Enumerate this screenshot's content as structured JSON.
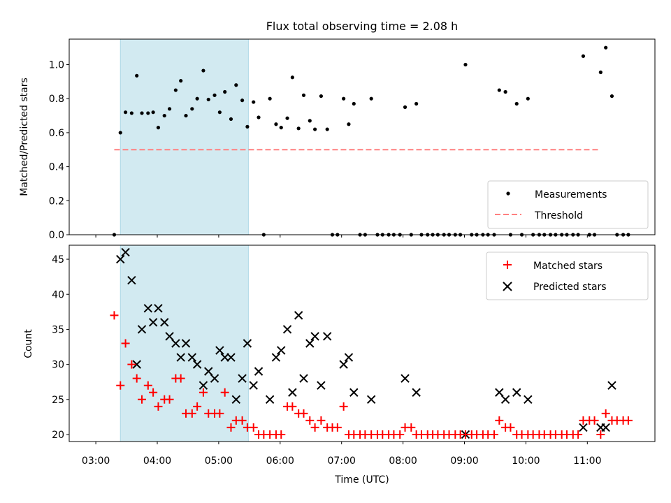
{
  "figure": {
    "title": "Flux total observing time = 2.08 h",
    "xlabel": "Time (UTC)"
  },
  "chart_data": [
    {
      "type": "scatter",
      "ylabel": "Matched/Predicted stars",
      "xlim": [
        "03:00",
        "11:40"
      ],
      "ylim": [
        0,
        1.15
      ],
      "yticks": [
        "0.0",
        "0.2",
        "0.4",
        "0.6",
        "0.8",
        "1.0"
      ],
      "x_tick_marks": [
        "03:00",
        "04:00",
        "05:00",
        "06:00",
        "07:00",
        "08:00",
        "09:00",
        "10:00",
        "11:00"
      ],
      "x_tick_labels_shown": false,
      "legend_position": "lower right",
      "shaded_interval": [
        "03:24",
        "05:29"
      ],
      "shaded_color": "#add8e6",
      "threshold": {
        "name": "Threshold",
        "value": 0.5,
        "x_range": [
          "03:18",
          "11:12"
        ],
        "color": "#ff8080",
        "style": "dashed"
      },
      "series": [
        {
          "name": "Measurements",
          "color": "#000000",
          "points": [
            [
              "03:18",
              0.0
            ],
            [
              "03:24",
              0.6
            ],
            [
              "03:29",
              0.72
            ],
            [
              "03:35",
              0.715
            ],
            [
              "03:40",
              0.935
            ],
            [
              "03:45",
              0.715
            ],
            [
              "03:51",
              0.715
            ],
            [
              "03:56",
              0.72
            ],
            [
              "04:01",
              0.63
            ],
            [
              "04:07",
              0.7
            ],
            [
              "04:12",
              0.74
            ],
            [
              "04:18",
              0.85
            ],
            [
              "04:23",
              0.905
            ],
            [
              "04:28",
              0.7
            ],
            [
              "04:34",
              0.74
            ],
            [
              "04:39",
              0.8
            ],
            [
              "04:45",
              0.965
            ],
            [
              "04:50",
              0.795
            ],
            [
              "04:56",
              0.82
            ],
            [
              "05:01",
              0.72
            ],
            [
              "05:06",
              0.84
            ],
            [
              "05:12",
              0.68
            ],
            [
              "05:17",
              0.88
            ],
            [
              "05:23",
              0.79
            ],
            [
              "05:28",
              0.635
            ],
            [
              "05:34",
              0.78
            ],
            [
              "05:39",
              0.69
            ],
            [
              "05:44",
              0.0
            ],
            [
              "05:50",
              0.8
            ],
            [
              "05:56",
              0.65
            ],
            [
              "06:01",
              0.63
            ],
            [
              "06:07",
              0.685
            ],
            [
              "06:12",
              0.925
            ],
            [
              "06:18",
              0.625
            ],
            [
              "06:23",
              0.82
            ],
            [
              "06:29",
              0.67
            ],
            [
              "06:34",
              0.62
            ],
            [
              "06:40",
              0.815
            ],
            [
              "06:46",
              0.62
            ],
            [
              "06:51",
              0.0
            ],
            [
              "06:56",
              0.0
            ],
            [
              "07:02",
              0.8
            ],
            [
              "07:07",
              0.65
            ],
            [
              "07:12",
              0.77
            ],
            [
              "07:18",
              0.0
            ],
            [
              "07:23",
              0.0
            ],
            [
              "07:29",
              0.8
            ],
            [
              "07:35",
              0.0
            ],
            [
              "07:40",
              0.0
            ],
            [
              "07:46",
              0.0
            ],
            [
              "07:51",
              0.0
            ],
            [
              "07:57",
              0.0
            ],
            [
              "08:02",
              0.75
            ],
            [
              "08:08",
              0.0
            ],
            [
              "08:13",
              0.77
            ],
            [
              "08:18",
              0.0
            ],
            [
              "08:24",
              0.0
            ],
            [
              "08:29",
              0.0
            ],
            [
              "08:34",
              0.0
            ],
            [
              "08:40",
              0.0
            ],
            [
              "08:45",
              0.0
            ],
            [
              "08:51",
              0.0
            ],
            [
              "08:56",
              0.0
            ],
            [
              "09:01",
              1.0
            ],
            [
              "09:07",
              0.0
            ],
            [
              "09:12",
              0.0
            ],
            [
              "09:18",
              0.0
            ],
            [
              "09:23",
              0.0
            ],
            [
              "09:29",
              0.0
            ],
            [
              "09:34",
              0.85
            ],
            [
              "09:40",
              0.84
            ],
            [
              "09:45",
              0.0
            ],
            [
              "09:51",
              0.77
            ],
            [
              "09:56",
              0.0
            ],
            [
              "10:02",
              0.8
            ],
            [
              "10:07",
              0.0
            ],
            [
              "10:13",
              0.0
            ],
            [
              "10:18",
              0.0
            ],
            [
              "10:24",
              0.0
            ],
            [
              "10:29",
              0.0
            ],
            [
              "10:35",
              0.0
            ],
            [
              "10:40",
              0.0
            ],
            [
              "10:46",
              0.0
            ],
            [
              "10:51",
              0.0
            ],
            [
              "10:56",
              1.05
            ],
            [
              "11:02",
              0.0
            ],
            [
              "11:07",
              0.0
            ],
            [
              "11:13",
              0.955
            ],
            [
              "11:18",
              1.1
            ],
            [
              "11:24",
              0.815
            ],
            [
              "11:29",
              0.0
            ],
            [
              "11:35",
              0.0
            ],
            [
              "11:40",
              0.0
            ]
          ]
        }
      ]
    },
    {
      "type": "scatter",
      "ylabel": "Count",
      "xlim": [
        "03:00",
        "11:40"
      ],
      "ylim": [
        19,
        47
      ],
      "yticks": [
        "20",
        "25",
        "30",
        "35",
        "40",
        "45"
      ],
      "x_tick_labels": [
        "03:00",
        "04:00",
        "05:00",
        "06:00",
        "07:00",
        "08:00",
        "09:00",
        "10:00",
        "11:00"
      ],
      "legend_position": "upper right",
      "shaded_interval": [
        "03:24",
        "05:29"
      ],
      "shaded_color": "#add8e6",
      "series": [
        {
          "name": "Matched stars",
          "color": "#ff0000",
          "marker": "plus",
          "points": [
            [
              "03:18",
              37
            ],
            [
              "03:24",
              27
            ],
            [
              "03:29",
              33
            ],
            [
              "03:35",
              30
            ],
            [
              "03:40",
              28
            ],
            [
              "03:45",
              25
            ],
            [
              "03:51",
              27
            ],
            [
              "03:56",
              26
            ],
            [
              "04:01",
              24
            ],
            [
              "04:07",
              25
            ],
            [
              "04:12",
              25
            ],
            [
              "04:18",
              28
            ],
            [
              "04:23",
              28
            ],
            [
              "04:28",
              23
            ],
            [
              "04:34",
              23
            ],
            [
              "04:39",
              24
            ],
            [
              "04:45",
              26
            ],
            [
              "04:50",
              23
            ],
            [
              "04:56",
              23
            ],
            [
              "05:01",
              23
            ],
            [
              "05:06",
              26
            ],
            [
              "05:12",
              21
            ],
            [
              "05:17",
              22
            ],
            [
              "05:23",
              22
            ],
            [
              "05:28",
              21
            ],
            [
              "05:34",
              21
            ],
            [
              "05:39",
              20
            ],
            [
              "05:44",
              20
            ],
            [
              "05:50",
              20
            ],
            [
              "05:56",
              20
            ],
            [
              "06:01",
              20
            ],
            [
              "06:07",
              24
            ],
            [
              "06:12",
              24
            ],
            [
              "06:18",
              23
            ],
            [
              "06:23",
              23
            ],
            [
              "06:29",
              22
            ],
            [
              "06:34",
              21
            ],
            [
              "06:40",
              22
            ],
            [
              "06:46",
              21
            ],
            [
              "06:51",
              21
            ],
            [
              "06:56",
              21
            ],
            [
              "07:02",
              24
            ],
            [
              "07:07",
              20
            ],
            [
              "07:12",
              20
            ],
            [
              "07:18",
              20
            ],
            [
              "07:23",
              20
            ],
            [
              "07:29",
              20
            ],
            [
              "07:35",
              20
            ],
            [
              "07:40",
              20
            ],
            [
              "07:46",
              20
            ],
            [
              "07:51",
              20
            ],
            [
              "07:57",
              20
            ],
            [
              "08:02",
              21
            ],
            [
              "08:08",
              21
            ],
            [
              "08:13",
              20
            ],
            [
              "08:18",
              20
            ],
            [
              "08:24",
              20
            ],
            [
              "08:29",
              20
            ],
            [
              "08:34",
              20
            ],
            [
              "08:40",
              20
            ],
            [
              "08:45",
              20
            ],
            [
              "08:51",
              20
            ],
            [
              "08:56",
              20
            ],
            [
              "09:01",
              20
            ],
            [
              "09:07",
              20
            ],
            [
              "09:12",
              20
            ],
            [
              "09:18",
              20
            ],
            [
              "09:23",
              20
            ],
            [
              "09:29",
              20
            ],
            [
              "09:34",
              22
            ],
            [
              "09:40",
              21
            ],
            [
              "09:45",
              21
            ],
            [
              "09:51",
              20
            ],
            [
              "09:56",
              20
            ],
            [
              "10:02",
              20
            ],
            [
              "10:07",
              20
            ],
            [
              "10:13",
              20
            ],
            [
              "10:18",
              20
            ],
            [
              "10:24",
              20
            ],
            [
              "10:29",
              20
            ],
            [
              "10:35",
              20
            ],
            [
              "10:40",
              20
            ],
            [
              "10:46",
              20
            ],
            [
              "10:51",
              20
            ],
            [
              "10:56",
              22
            ],
            [
              "11:02",
              22
            ],
            [
              "11:07",
              22
            ],
            [
              "11:13",
              20
            ],
            [
              "11:18",
              23
            ],
            [
              "11:24",
              22
            ],
            [
              "11:29",
              22
            ],
            [
              "11:35",
              22
            ],
            [
              "11:40",
              22
            ]
          ]
        },
        {
          "name": "Predicted stars",
          "color": "#000000",
          "marker": "x",
          "points": [
            [
              "03:24",
              45
            ],
            [
              "03:29",
              46
            ],
            [
              "03:35",
              42
            ],
            [
              "03:40",
              30
            ],
            [
              "03:45",
              35
            ],
            [
              "03:51",
              38
            ],
            [
              "03:56",
              36
            ],
            [
              "04:01",
              38
            ],
            [
              "04:07",
              36
            ],
            [
              "04:12",
              34
            ],
            [
              "04:18",
              33
            ],
            [
              "04:23",
              31
            ],
            [
              "04:28",
              33
            ],
            [
              "04:34",
              31
            ],
            [
              "04:39",
              30
            ],
            [
              "04:45",
              27
            ],
            [
              "04:50",
              29
            ],
            [
              "04:56",
              28
            ],
            [
              "05:01",
              32
            ],
            [
              "05:06",
              31
            ],
            [
              "05:12",
              31
            ],
            [
              "05:17",
              25
            ],
            [
              "05:23",
              28
            ],
            [
              "05:28",
              33
            ],
            [
              "05:34",
              27
            ],
            [
              "05:39",
              29
            ],
            [
              "05:50",
              25
            ],
            [
              "05:56",
              31
            ],
            [
              "06:01",
              32
            ],
            [
              "06:07",
              35
            ],
            [
              "06:12",
              26
            ],
            [
              "06:18",
              37
            ],
            [
              "06:23",
              28
            ],
            [
              "06:29",
              33
            ],
            [
              "06:34",
              34
            ],
            [
              "06:40",
              27
            ],
            [
              "06:46",
              34
            ],
            [
              "07:02",
              30
            ],
            [
              "07:07",
              31
            ],
            [
              "07:12",
              26
            ],
            [
              "07:29",
              25
            ],
            [
              "08:02",
              28
            ],
            [
              "08:13",
              26
            ],
            [
              "09:01",
              20
            ],
            [
              "09:34",
              26
            ],
            [
              "09:40",
              25
            ],
            [
              "09:51",
              26
            ],
            [
              "10:02",
              25
            ],
            [
              "10:56",
              21
            ],
            [
              "11:13",
              21
            ],
            [
              "11:18",
              21
            ],
            [
              "11:24",
              27
            ]
          ]
        }
      ]
    }
  ]
}
